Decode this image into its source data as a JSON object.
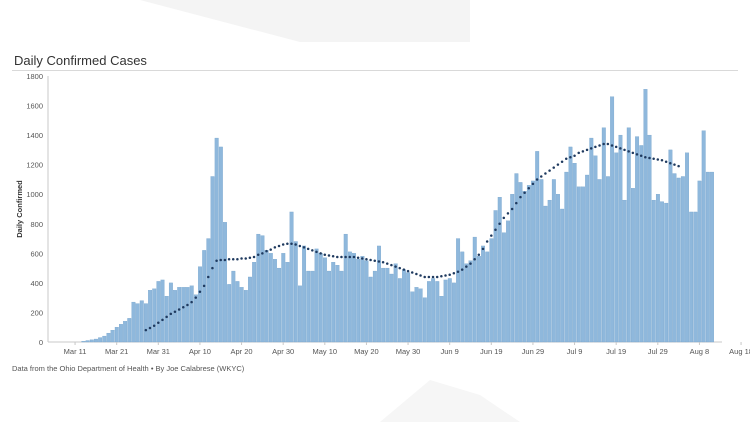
{
  "title": "Daily Confirmed Cases",
  "caption": "Data from the Ohio Department of Health • By Joe Calabrese (WKYC)",
  "colors": {
    "bar": "#8fb8dc",
    "bar_edge": "#6e9ec8",
    "avg": "#1f3a5f",
    "grid": "#e3e3e3"
  },
  "chart_data": {
    "type": "bar",
    "ylabel": "Daily Confirmed",
    "xlabel": "",
    "ylim": [
      0,
      1800
    ],
    "yticks": [
      "0",
      "200",
      "400",
      "600",
      "800",
      "1000",
      "1200",
      "1400",
      "1600",
      "1800"
    ],
    "xticks": [
      "Mar 11",
      "Mar 21",
      "Mar 31",
      "Apr 10",
      "Apr 20",
      "Apr 30",
      "May 10",
      "May 20",
      "May 30",
      "Jun 9",
      "Jun 19",
      "Jun 29",
      "Jul 9",
      "Jul 19",
      "Jul 29",
      "Aug 8",
      "Aug 18"
    ],
    "grid": false,
    "series": [
      {
        "values": [
          0,
          0,
          0,
          0,
          0,
          0,
          0,
          0,
          5,
          10,
          15,
          20,
          30,
          40,
          60,
          80,
          100,
          120,
          140,
          160,
          270,
          260,
          280,
          260,
          350,
          360,
          410,
          420,
          310,
          400,
          350,
          370,
          370,
          370,
          380,
          320,
          510,
          620,
          700,
          1120,
          1380,
          1320,
          810,
          390,
          480,
          410,
          370,
          350,
          440,
          540,
          730,
          720,
          620,
          600,
          560,
          500,
          600,
          540,
          880,
          680,
          380,
          650,
          480,
          480,
          630,
          600,
          570,
          480,
          540,
          520,
          480,
          730,
          610,
          600,
          560,
          580,
          550,
          440,
          480,
          650,
          500,
          500,
          460,
          530,
          430,
          490,
          470,
          340,
          370,
          360,
          300,
          410,
          430,
          410,
          310,
          420,
          430,
          400,
          700,
          610,
          530,
          550,
          710,
          580,
          650,
          610,
          700,
          890,
          980,
          740,
          820,
          1000,
          1140,
          1080,
          1020,
          1060,
          1090,
          1290,
          1100,
          920,
          960,
          1100,
          1000,
          900,
          1150,
          1320,
          1210,
          1050,
          1050,
          1130,
          1380,
          1260,
          1100,
          1450,
          1120,
          1660,
          1280,
          1400,
          960,
          1450,
          1040,
          1390,
          1330,
          1710,
          1400,
          960,
          1000,
          950,
          940,
          1300,
          1140,
          1110,
          1120,
          1280,
          880,
          880,
          1090,
          1430,
          1150,
          1150
        ]
      },
      {
        "values": [
          null,
          null,
          null,
          null,
          null,
          null,
          null,
          null,
          null,
          null,
          null,
          null,
          null,
          null,
          null,
          null,
          null,
          null,
          null,
          null,
          null,
          null,
          null,
          80,
          95,
          110,
          130,
          150,
          170,
          190,
          205,
          220,
          235,
          250,
          270,
          300,
          340,
          380,
          440,
          500,
          550,
          555,
          555,
          560,
          560,
          560,
          565,
          565,
          570,
          575,
          590,
          600,
          615,
          625,
          640,
          650,
          660,
          665,
          665,
          660,
          650,
          640,
          630,
          620,
          610,
          600,
          590,
          585,
          580,
          575,
          575,
          575,
          575,
          575,
          570,
          565,
          560,
          555,
          550,
          545,
          540,
          530,
          520,
          510,
          500,
          490,
          480,
          470,
          460,
          450,
          440,
          440,
          440,
          440,
          445,
          450,
          455,
          465,
          475,
          490,
          510,
          530,
          560,
          590,
          630,
          680,
          720,
          760,
          800,
          840,
          870,
          900,
          940,
          980,
          1010,
          1040,
          1070,
          1100,
          1120,
          1140,
          1160,
          1180,
          1200,
          1220,
          1240,
          1250,
          1260,
          1280,
          1290,
          1300,
          1310,
          1320,
          1330,
          1340,
          1340,
          1330,
          1320,
          1310,
          1300,
          1290,
          1280,
          1270,
          1260,
          1250,
          1245,
          1240,
          1235,
          1230,
          1220,
          1210,
          1200,
          1190
        ]
      }
    ]
  }
}
